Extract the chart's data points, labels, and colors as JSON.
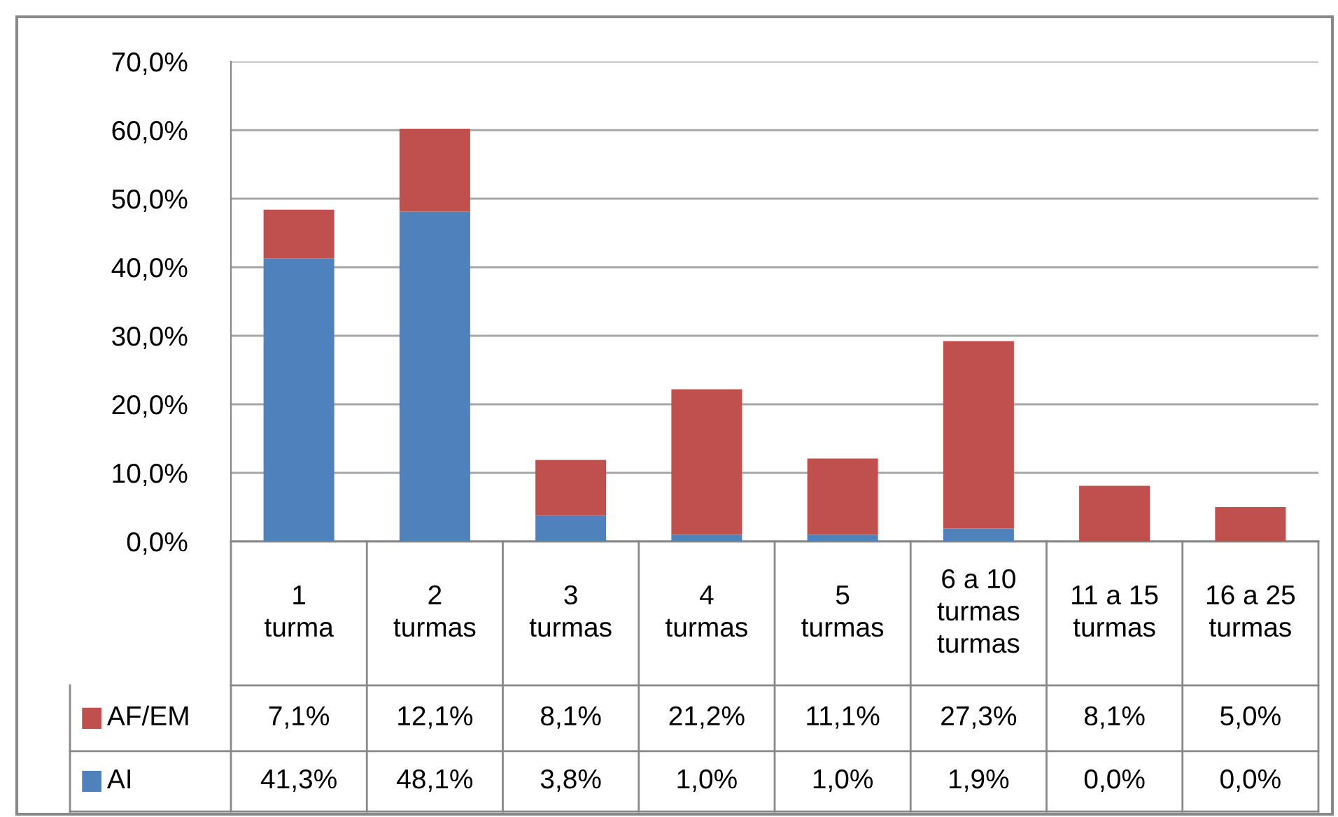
{
  "chart_data": {
    "type": "bar",
    "stacked": true,
    "categories": [
      "1\nturma",
      "2\nturmas",
      "3\nturmas",
      "4\nturmas",
      "5\nturmas",
      "6 a 10\nturmas\nturmas",
      "11 a 15\nturmas",
      "16 a 25\nturmas"
    ],
    "series": [
      {
        "name": "AI",
        "color": "#4f81bd",
        "values": [
          41.3,
          48.1,
          3.8,
          1.0,
          1.0,
          1.9,
          0.0,
          0.0
        ],
        "value_labels": [
          "41,3%",
          "48,1%",
          "3,8%",
          "1,0%",
          "1,0%",
          "1,9%",
          "0,0%",
          "0,0%"
        ]
      },
      {
        "name": "AF/EM",
        "color": "#c0504d",
        "values": [
          7.1,
          12.1,
          8.1,
          21.2,
          11.1,
          27.3,
          8.1,
          5.0
        ],
        "value_labels": [
          "7,1%",
          "12,1%",
          "8,1%",
          "21,2%",
          "11,1%",
          "27,3%",
          "8,1%",
          "5,0%"
        ]
      }
    ],
    "ylim": [
      0,
      70
    ],
    "yticks": [
      {
        "value": 0,
        "label": "0,0%"
      },
      {
        "value": 10,
        "label": "10,0%"
      },
      {
        "value": 20,
        "label": "20,0%"
      },
      {
        "value": 30,
        "label": "30,0%"
      },
      {
        "value": 40,
        "label": "40,0%"
      },
      {
        "value": 50,
        "label": "50,0%"
      },
      {
        "value": 60,
        "label": "60,0%"
      },
      {
        "value": 70,
        "label": "70,0%"
      }
    ],
    "grid": "y",
    "legend": "bottom left"
  }
}
